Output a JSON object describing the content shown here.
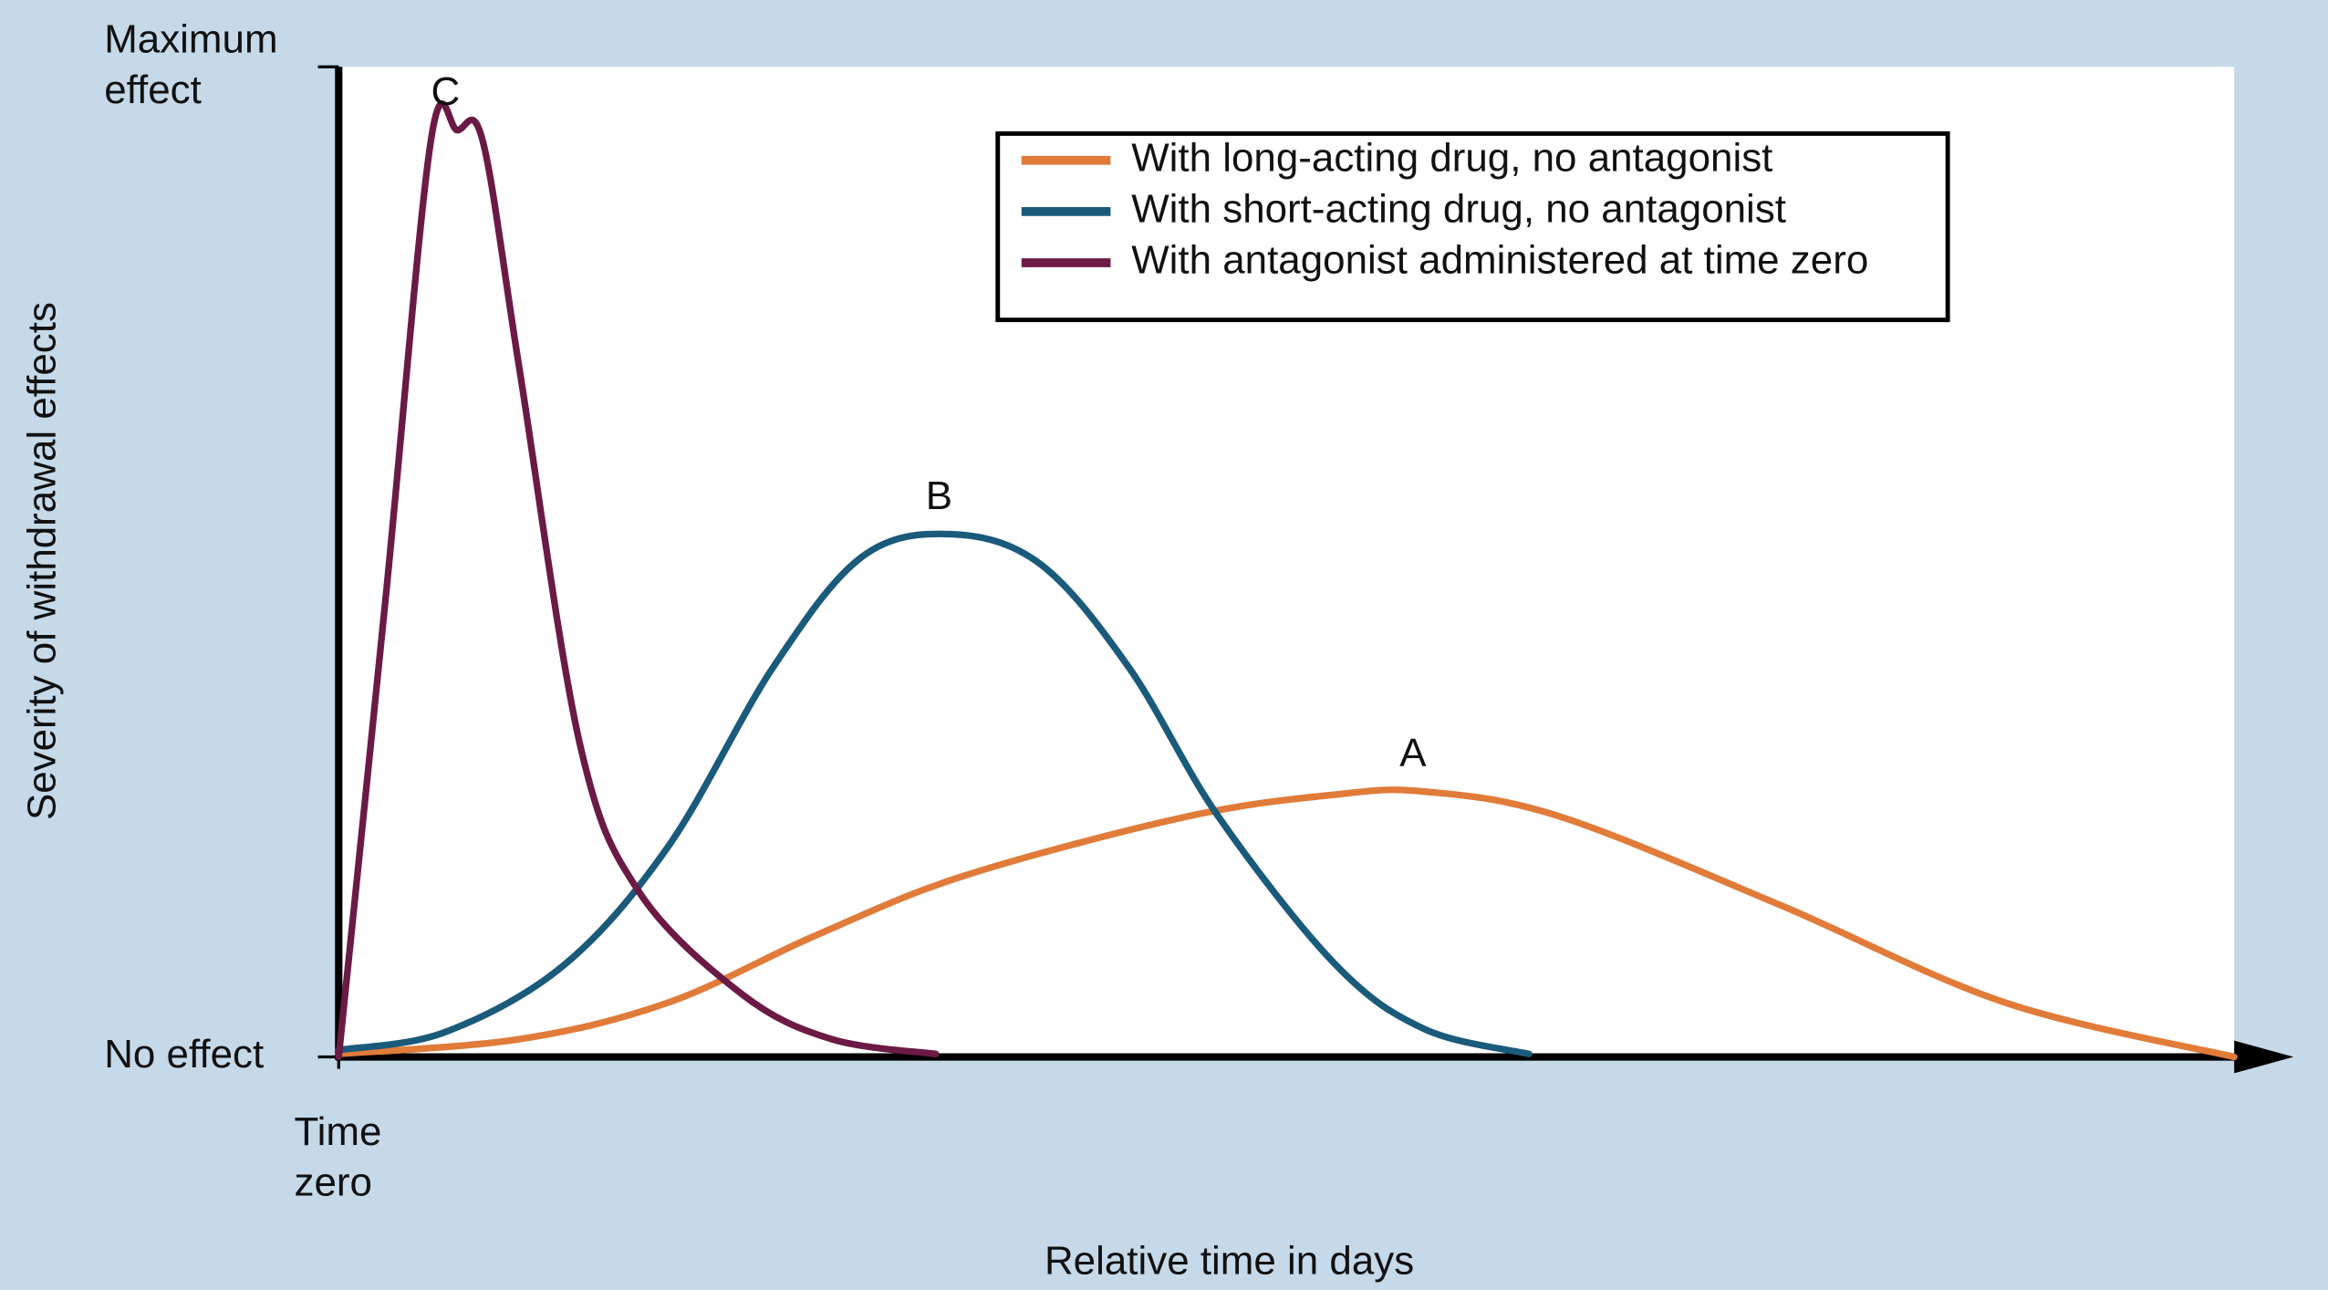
{
  "chart_data": {
    "type": "line",
    "xlabel": "Relative time in days",
    "ylabel": "Severity of withdrawal effects",
    "xlim": [
      0,
      100
    ],
    "ylim": [
      0,
      100
    ],
    "xticks": [
      {
        "value": 0,
        "label": "Time zero"
      }
    ],
    "yticks": [
      {
        "value": 0,
        "label": "No effect"
      },
      {
        "value": 100,
        "label": "Maximum effect"
      }
    ],
    "legend": "top-right",
    "series": [
      {
        "name": "With long-acting drug, no antagonist",
        "label": "A",
        "color": "#e07b39",
        "x": [
          0,
          9.55,
          17.4,
          25.2,
          33,
          44.8,
          52.6,
          57.3,
          64.4,
          76.1,
          87.9,
          100
        ],
        "values": [
          0.3,
          1.8,
          5.5,
          12.3,
          18.3,
          24.3,
          26.5,
          26.8,
          24.3,
          15.3,
          5.5,
          0
        ]
      },
      {
        "name": "With short-acting drug, no antagonist",
        "label": "B",
        "color": "#1a5a7a",
        "x": [
          0,
          5.6,
          11.9,
          17.4,
          22.9,
          27.6,
          32.3,
          37,
          41.7,
          46.4,
          52.6,
          57.3,
          62.8
        ],
        "values": [
          0.7,
          2.5,
          9.3,
          21.3,
          39.3,
          50.5,
          52.8,
          49.8,
          39.3,
          24.3,
          9.3,
          2.8,
          0.3
        ]
      },
      {
        "name": "With antagonist administered at time zero",
        "label": "C",
        "color": "#6b1a45",
        "x": [
          0,
          2.5,
          4.86,
          6.26,
          7.6,
          9.55,
          12.7,
          15.8,
          21.3,
          26,
          31.5
        ],
        "values": [
          0,
          46.8,
          92.5,
          93.6,
          92.5,
          69.3,
          31.8,
          16.8,
          6.3,
          1.8,
          0.3
        ]
      }
    ]
  }
}
